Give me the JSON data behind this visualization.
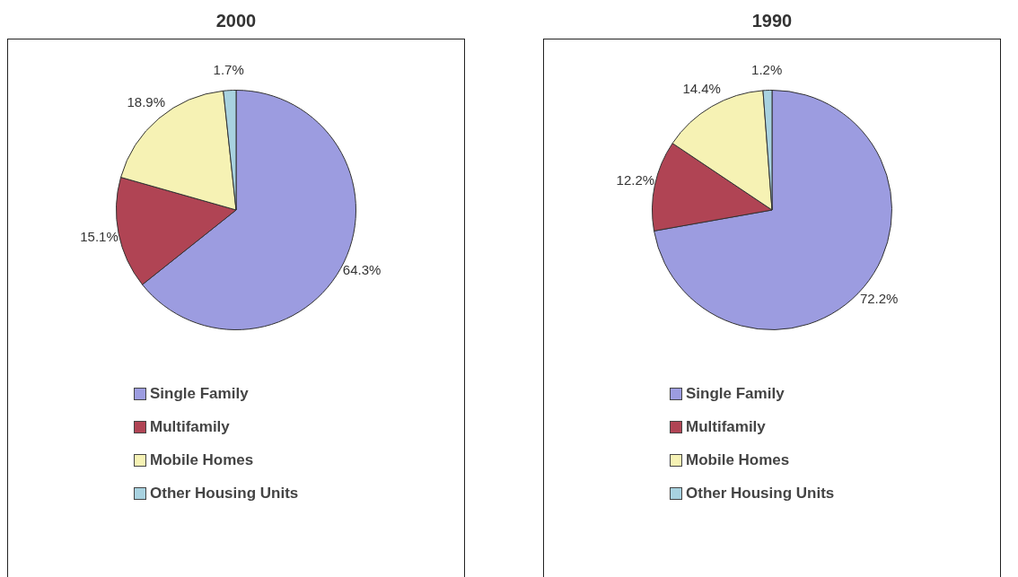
{
  "chart_data": [
    {
      "type": "pie",
      "title": "2000",
      "categories": [
        "Single Family",
        "Multifamily",
        "Mobile Homes",
        "Other Housing Units"
      ],
      "values": [
        64.3,
        15.1,
        18.9,
        1.7
      ],
      "value_labels": [
        "64.3%",
        "15.1%",
        "18.9%",
        "1.7%"
      ],
      "colors": [
        "#9c9ce0",
        "#b04454",
        "#f6f2b4",
        "#a8d2e0"
      ],
      "legend": "bottom"
    },
    {
      "type": "pie",
      "title": "1990",
      "categories": [
        "Single Family",
        "Multifamily",
        "Mobile Homes",
        "Other Housing Units"
      ],
      "values": [
        72.2,
        12.2,
        14.4,
        1.2
      ],
      "value_labels": [
        "72.2%",
        "12.2%",
        "14.4%",
        "1.2%"
      ],
      "colors": [
        "#9c9ce0",
        "#b04454",
        "#f6f2b4",
        "#a8d2e0"
      ],
      "legend": "bottom"
    }
  ]
}
